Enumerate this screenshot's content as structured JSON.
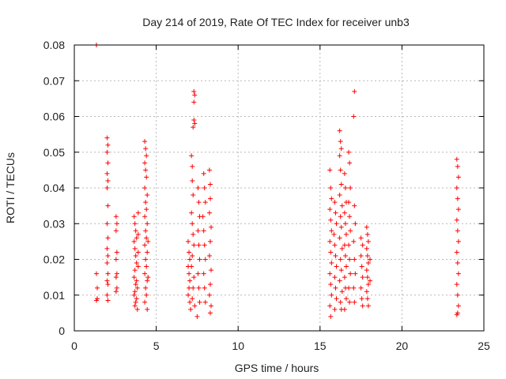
{
  "chart_data": {
    "type": "scatter",
    "title": "Day 214 of 2019, Rate Of TEC Index for receiver unb3",
    "xlabel": "GPS time / hours",
    "ylabel": "ROTI / TECUs",
    "xlim": [
      0,
      25
    ],
    "ylim": [
      0,
      0.08
    ],
    "x_ticks": [
      "0",
      "5",
      "10",
      "15",
      "20",
      "25"
    ],
    "y_ticks": [
      "0",
      "0.01",
      "0.02",
      "0.03",
      "0.04",
      "0.05",
      "0.06",
      "0.07",
      "0.08"
    ],
    "grid": true,
    "marker": "+",
    "color": "#ff0000",
    "series": [
      {
        "points": [
          [
            1.35,
            0.08
          ],
          [
            1.35,
            0.016
          ],
          [
            1.4,
            0.012
          ],
          [
            1.4,
            0.009
          ],
          [
            1.35,
            0.0085
          ],
          [
            2.0,
            0.054
          ],
          [
            2.05,
            0.052
          ],
          [
            2.0,
            0.05
          ],
          [
            2.05,
            0.047
          ],
          [
            2.0,
            0.044
          ],
          [
            2.05,
            0.042
          ],
          [
            2.0,
            0.04
          ],
          [
            2.05,
            0.035
          ],
          [
            2.0,
            0.03
          ],
          [
            2.05,
            0.026
          ],
          [
            2.0,
            0.023
          ],
          [
            2.05,
            0.021
          ],
          [
            2.0,
            0.019
          ],
          [
            2.05,
            0.016
          ],
          [
            2.0,
            0.014
          ],
          [
            2.05,
            0.013
          ],
          [
            2.0,
            0.01
          ],
          [
            2.05,
            0.0085
          ],
          [
            2.55,
            0.032
          ],
          [
            2.6,
            0.03
          ],
          [
            2.55,
            0.028
          ],
          [
            2.6,
            0.022
          ],
          [
            2.55,
            0.02
          ],
          [
            2.6,
            0.016
          ],
          [
            2.55,
            0.015
          ],
          [
            2.6,
            0.012
          ],
          [
            2.55,
            0.011
          ],
          [
            3.65,
            0.032
          ],
          [
            3.7,
            0.03
          ],
          [
            3.75,
            0.028
          ],
          [
            3.8,
            0.026
          ],
          [
            3.65,
            0.025
          ],
          [
            3.7,
            0.023
          ],
          [
            3.75,
            0.021
          ],
          [
            3.8,
            0.019
          ],
          [
            3.7,
            0.017
          ],
          [
            3.65,
            0.015
          ],
          [
            3.8,
            0.014
          ],
          [
            3.75,
            0.013
          ],
          [
            3.7,
            0.011
          ],
          [
            3.65,
            0.01
          ],
          [
            3.8,
            0.009
          ],
          [
            3.75,
            0.008
          ],
          [
            3.7,
            0.007
          ],
          [
            3.85,
            0.006
          ],
          [
            3.9,
            0.033
          ],
          [
            3.9,
            0.027
          ],
          [
            3.9,
            0.022
          ],
          [
            3.9,
            0.018
          ],
          [
            3.85,
            0.012
          ],
          [
            4.3,
            0.053
          ],
          [
            4.35,
            0.051
          ],
          [
            4.4,
            0.049
          ],
          [
            4.3,
            0.047
          ],
          [
            4.35,
            0.045
          ],
          [
            4.4,
            0.043
          ],
          [
            4.3,
            0.04
          ],
          [
            4.45,
            0.038
          ],
          [
            4.35,
            0.036
          ],
          [
            4.4,
            0.034
          ],
          [
            4.3,
            0.032
          ],
          [
            4.45,
            0.03
          ],
          [
            4.35,
            0.028
          ],
          [
            4.4,
            0.026
          ],
          [
            4.3,
            0.024
          ],
          [
            4.45,
            0.022
          ],
          [
            4.35,
            0.02
          ],
          [
            4.4,
            0.018
          ],
          [
            4.3,
            0.016
          ],
          [
            4.45,
            0.014
          ],
          [
            4.35,
            0.012
          ],
          [
            4.4,
            0.01
          ],
          [
            4.3,
            0.008
          ],
          [
            4.45,
            0.006
          ],
          [
            4.5,
            0.025
          ],
          [
            4.5,
            0.015
          ],
          [
            6.95,
            0.025
          ],
          [
            7.0,
            0.022
          ],
          [
            7.05,
            0.02
          ],
          [
            6.95,
            0.018
          ],
          [
            7.0,
            0.016
          ],
          [
            7.05,
            0.014
          ],
          [
            7.0,
            0.012
          ],
          [
            6.95,
            0.01
          ],
          [
            7.05,
            0.008
          ],
          [
            7.1,
            0.006
          ],
          [
            7.15,
            0.049
          ],
          [
            7.2,
            0.046
          ],
          [
            7.2,
            0.042
          ],
          [
            7.25,
            0.038
          ],
          [
            7.15,
            0.033
          ],
          [
            7.2,
            0.03
          ],
          [
            7.25,
            0.027
          ],
          [
            7.3,
            0.024
          ],
          [
            7.2,
            0.021
          ],
          [
            7.15,
            0.018
          ],
          [
            7.3,
            0.015
          ],
          [
            7.25,
            0.012
          ],
          [
            7.2,
            0.009
          ],
          [
            7.35,
            0.007
          ],
          [
            7.3,
            0.067
          ],
          [
            7.35,
            0.066
          ],
          [
            7.3,
            0.064
          ],
          [
            7.3,
            0.059
          ],
          [
            7.35,
            0.058
          ],
          [
            7.25,
            0.057
          ],
          [
            7.55,
            0.04
          ],
          [
            7.6,
            0.036
          ],
          [
            7.65,
            0.032
          ],
          [
            7.55,
            0.028
          ],
          [
            7.6,
            0.024
          ],
          [
            7.65,
            0.02
          ],
          [
            7.55,
            0.016
          ],
          [
            7.6,
            0.012
          ],
          [
            7.65,
            0.008
          ],
          [
            7.5,
            0.004
          ],
          [
            7.9,
            0.044
          ],
          [
            7.95,
            0.04
          ],
          [
            8.0,
            0.036
          ],
          [
            7.85,
            0.032
          ],
          [
            7.9,
            0.028
          ],
          [
            7.95,
            0.024
          ],
          [
            8.0,
            0.02
          ],
          [
            7.9,
            0.016
          ],
          [
            7.95,
            0.012
          ],
          [
            8.0,
            0.008
          ],
          [
            8.25,
            0.045
          ],
          [
            8.3,
            0.041
          ],
          [
            8.3,
            0.037
          ],
          [
            8.25,
            0.033
          ],
          [
            8.35,
            0.029
          ],
          [
            8.3,
            0.025
          ],
          [
            8.25,
            0.021
          ],
          [
            8.35,
            0.017
          ],
          [
            8.3,
            0.013
          ],
          [
            8.25,
            0.01
          ],
          [
            8.35,
            0.007
          ],
          [
            8.3,
            0.005
          ],
          [
            15.6,
            0.045
          ],
          [
            15.65,
            0.04
          ],
          [
            15.7,
            0.037
          ],
          [
            15.6,
            0.034
          ],
          [
            15.65,
            0.031
          ],
          [
            15.7,
            0.028
          ],
          [
            15.6,
            0.025
          ],
          [
            15.65,
            0.022
          ],
          [
            15.7,
            0.019
          ],
          [
            15.6,
            0.016
          ],
          [
            15.65,
            0.013
          ],
          [
            15.7,
            0.01
          ],
          [
            15.6,
            0.007
          ],
          [
            15.65,
            0.004
          ],
          [
            15.9,
            0.036
          ],
          [
            15.95,
            0.033
          ],
          [
            16.0,
            0.03
          ],
          [
            15.85,
            0.027
          ],
          [
            15.9,
            0.024
          ],
          [
            15.95,
            0.021
          ],
          [
            16.0,
            0.018
          ],
          [
            15.9,
            0.015
          ],
          [
            15.95,
            0.012
          ],
          [
            16.0,
            0.009
          ],
          [
            15.9,
            0.006
          ],
          [
            16.2,
            0.056
          ],
          [
            16.25,
            0.053
          ],
          [
            16.3,
            0.051
          ],
          [
            16.2,
            0.049
          ],
          [
            16.25,
            0.045
          ],
          [
            16.3,
            0.041
          ],
          [
            16.2,
            0.038
          ],
          [
            16.35,
            0.035
          ],
          [
            16.25,
            0.032
          ],
          [
            16.3,
            0.029
          ],
          [
            16.2,
            0.026
          ],
          [
            16.35,
            0.023
          ],
          [
            16.25,
            0.02
          ],
          [
            16.3,
            0.017
          ],
          [
            16.2,
            0.014
          ],
          [
            16.35,
            0.011
          ],
          [
            16.25,
            0.008
          ],
          [
            16.3,
            0.006
          ],
          [
            16.5,
            0.044
          ],
          [
            16.55,
            0.04
          ],
          [
            16.6,
            0.036
          ],
          [
            16.5,
            0.033
          ],
          [
            16.55,
            0.03
          ],
          [
            16.6,
            0.027
          ],
          [
            16.5,
            0.024
          ],
          [
            16.55,
            0.021
          ],
          [
            16.6,
            0.018
          ],
          [
            16.5,
            0.015
          ],
          [
            16.55,
            0.012
          ],
          [
            16.6,
            0.009
          ],
          [
            16.5,
            0.006
          ],
          [
            16.75,
            0.05
          ],
          [
            16.8,
            0.047
          ],
          [
            16.85,
            0.04
          ],
          [
            16.75,
            0.036
          ],
          [
            16.8,
            0.032
          ],
          [
            16.85,
            0.028
          ],
          [
            16.75,
            0.024
          ],
          [
            16.8,
            0.02
          ],
          [
            16.85,
            0.016
          ],
          [
            16.75,
            0.012
          ],
          [
            16.8,
            0.008
          ],
          [
            17.1,
            0.067
          ],
          [
            17.05,
            0.06
          ],
          [
            17.1,
            0.035
          ],
          [
            17.15,
            0.03
          ],
          [
            17.05,
            0.025
          ],
          [
            17.1,
            0.02
          ],
          [
            17.15,
            0.016
          ],
          [
            17.05,
            0.012
          ],
          [
            17.1,
            0.008
          ],
          [
            17.5,
            0.026
          ],
          [
            17.6,
            0.024
          ],
          [
            17.5,
            0.021
          ],
          [
            17.55,
            0.018
          ],
          [
            17.6,
            0.015
          ],
          [
            17.5,
            0.012
          ],
          [
            17.55,
            0.009
          ],
          [
            17.6,
            0.007
          ],
          [
            17.85,
            0.029
          ],
          [
            17.9,
            0.027
          ],
          [
            17.95,
            0.025
          ],
          [
            17.85,
            0.023
          ],
          [
            17.9,
            0.021
          ],
          [
            17.95,
            0.019
          ],
          [
            17.85,
            0.017
          ],
          [
            17.9,
            0.015
          ],
          [
            17.95,
            0.013
          ],
          [
            17.85,
            0.011
          ],
          [
            17.9,
            0.009
          ],
          [
            17.95,
            0.007
          ],
          [
            18.05,
            0.02
          ],
          [
            18.05,
            0.014
          ],
          [
            23.35,
            0.048
          ],
          [
            23.4,
            0.046
          ],
          [
            23.45,
            0.043
          ],
          [
            23.35,
            0.04
          ],
          [
            23.4,
            0.037
          ],
          [
            23.45,
            0.034
          ],
          [
            23.35,
            0.031
          ],
          [
            23.4,
            0.028
          ],
          [
            23.45,
            0.025
          ],
          [
            23.35,
            0.022
          ],
          [
            23.4,
            0.019
          ],
          [
            23.45,
            0.016
          ],
          [
            23.35,
            0.013
          ],
          [
            23.4,
            0.01
          ],
          [
            23.45,
            0.007
          ],
          [
            23.4,
            0.005
          ],
          [
            23.35,
            0.0045
          ]
        ]
      }
    ]
  }
}
